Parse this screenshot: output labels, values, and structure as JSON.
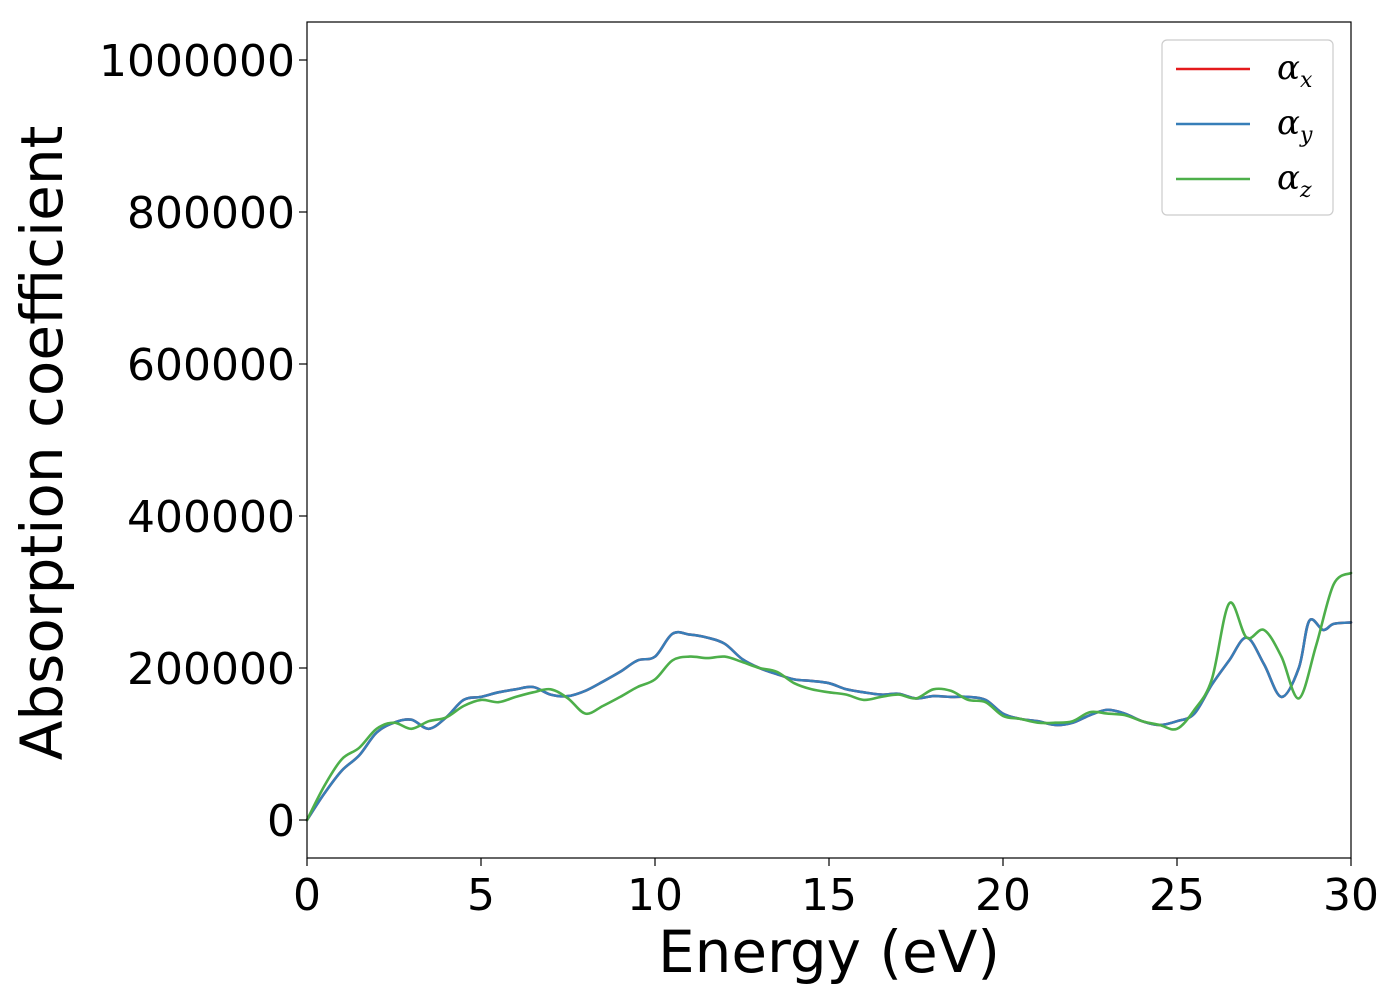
{
  "chart_data": {
    "type": "line",
    "title": "",
    "xlabel": "Energy (eV)",
    "ylabel": "Absorption coefficient",
    "xlim": [
      0,
      30
    ],
    "ylim": [
      -50000,
      1050000
    ],
    "xticks": [
      0,
      5,
      10,
      15,
      20,
      25,
      30
    ],
    "yticks": [
      0,
      200000,
      400000,
      600000,
      800000,
      1000000
    ],
    "grid": false,
    "legend_position": "top-right",
    "series": [
      {
        "name": "α_x",
        "legend_main": "α",
        "legend_sub": "x",
        "color": "#e41a1c",
        "x": [
          0,
          0.5,
          1,
          1.5,
          2,
          2.5,
          3,
          3.5,
          4,
          4.5,
          5,
          5.5,
          6,
          6.5,
          7,
          7.5,
          8,
          8.5,
          9,
          9.5,
          10,
          10.5,
          11,
          11.5,
          12,
          12.5,
          13,
          13.5,
          14,
          14.5,
          15,
          15.5,
          16,
          16.5,
          17,
          17.5,
          18,
          18.5,
          19,
          19.5,
          20,
          20.5,
          21,
          21.5,
          22,
          22.5,
          23,
          23.5,
          24,
          24.5,
          25,
          25.5,
          26,
          26.5,
          27,
          27.5,
          28,
          28.5,
          28.8,
          29.2,
          29.5,
          30
        ],
        "y": [
          0,
          35000,
          65000,
          85000,
          115000,
          128000,
          132000,
          120000,
          135000,
          158000,
          162000,
          168000,
          172000,
          175000,
          165000,
          163000,
          170000,
          182000,
          195000,
          210000,
          215000,
          245000,
          244000,
          240000,
          232000,
          212000,
          200000,
          192000,
          185000,
          183000,
          180000,
          172000,
          168000,
          165000,
          166000,
          160000,
          163000,
          162000,
          162000,
          158000,
          140000,
          133000,
          130000,
          125000,
          128000,
          138000,
          145000,
          140000,
          130000,
          125000,
          130000,
          140000,
          178000,
          210000,
          240000,
          205000,
          162000,
          200000,
          262000,
          250000,
          258000,
          260000
        ]
      },
      {
        "name": "α_y",
        "legend_main": "α",
        "legend_sub": "y",
        "color": "#377eb8",
        "x": [
          0,
          0.5,
          1,
          1.5,
          2,
          2.5,
          3,
          3.5,
          4,
          4.5,
          5,
          5.5,
          6,
          6.5,
          7,
          7.5,
          8,
          8.5,
          9,
          9.5,
          10,
          10.5,
          11,
          11.5,
          12,
          12.5,
          13,
          13.5,
          14,
          14.5,
          15,
          15.5,
          16,
          16.5,
          17,
          17.5,
          18,
          18.5,
          19,
          19.5,
          20,
          20.5,
          21,
          21.5,
          22,
          22.5,
          23,
          23.5,
          24,
          24.5,
          25,
          25.5,
          26,
          26.5,
          27,
          27.5,
          28,
          28.5,
          28.8,
          29.2,
          29.5,
          30
        ],
        "y": [
          0,
          35000,
          65000,
          85000,
          115000,
          128000,
          132000,
          120000,
          135000,
          158000,
          162000,
          168000,
          172000,
          175000,
          165000,
          163000,
          170000,
          182000,
          195000,
          210000,
          215000,
          245000,
          244000,
          240000,
          232000,
          212000,
          200000,
          192000,
          185000,
          183000,
          180000,
          172000,
          168000,
          165000,
          166000,
          160000,
          163000,
          162000,
          162000,
          158000,
          140000,
          133000,
          130000,
          125000,
          128000,
          138000,
          145000,
          140000,
          130000,
          125000,
          130000,
          140000,
          178000,
          210000,
          240000,
          205000,
          162000,
          200000,
          262000,
          250000,
          258000,
          260000
        ]
      },
      {
        "name": "α_z",
        "legend_main": "α",
        "legend_sub": "z",
        "color": "#4daf4a",
        "x": [
          0,
          0.5,
          1,
          1.5,
          2,
          2.5,
          3,
          3.5,
          4,
          4.5,
          5,
          5.5,
          6,
          6.5,
          7,
          7.5,
          8,
          8.5,
          9,
          9.5,
          10,
          10.5,
          11,
          11.5,
          12,
          12.5,
          13,
          13.5,
          14,
          14.5,
          15,
          15.5,
          16,
          16.5,
          17,
          17.5,
          18,
          18.5,
          19,
          19.5,
          20,
          20.5,
          21,
          21.5,
          22,
          22.5,
          23,
          23.5,
          24,
          24.5,
          25,
          25.5,
          26,
          26.5,
          27,
          27.5,
          28,
          28.5,
          29,
          29.5,
          30
        ],
        "y": [
          0,
          45000,
          80000,
          95000,
          120000,
          128000,
          120000,
          130000,
          135000,
          150000,
          158000,
          155000,
          162000,
          168000,
          172000,
          160000,
          140000,
          150000,
          162000,
          175000,
          185000,
          210000,
          215000,
          213000,
          215000,
          208000,
          200000,
          195000,
          180000,
          172000,
          168000,
          165000,
          158000,
          162000,
          165000,
          160000,
          172000,
          170000,
          158000,
          155000,
          137000,
          133000,
          128000,
          128000,
          130000,
          142000,
          140000,
          138000,
          130000,
          125000,
          120000,
          145000,
          185000,
          285000,
          240000,
          250000,
          215000,
          160000,
          230000,
          310000,
          325000
        ]
      }
    ]
  }
}
